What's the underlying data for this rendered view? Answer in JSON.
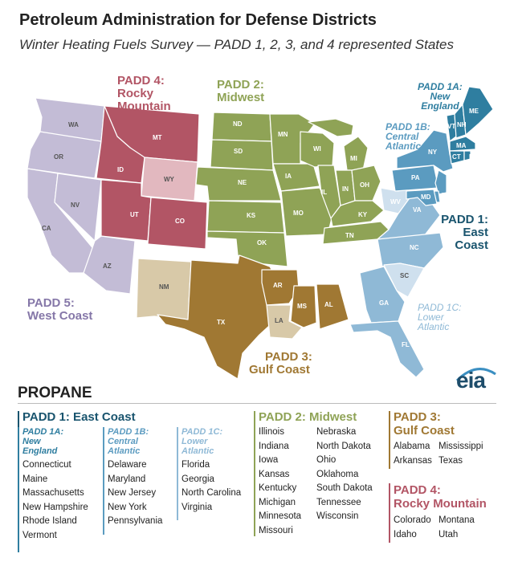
{
  "title": "Petroleum Administration for Defense Districts",
  "subtitle": "Winter Heating Fuels Survey — PADD 1, 2, 3, and 4 represented States",
  "colors": {
    "padd1": "#19546e",
    "padd1a": "#2f7ea0",
    "padd1b": "#5b9bc0",
    "padd1c": "#8fb9d6",
    "padd2": "#8fa356",
    "padd3": "#a07833",
    "padd4": "#b25565",
    "padd5": "#8577a8"
  },
  "map_labels": {
    "padd1": [
      "PADD 1:",
      "East",
      "Coast"
    ],
    "padd1a": [
      "PADD 1A:",
      "New",
      "England"
    ],
    "padd1b": [
      "PADD 1B:",
      "Central",
      "Atlantic"
    ],
    "padd1c": [
      "PADD 1C:",
      "Lower",
      "Atlantic"
    ],
    "padd2": [
      "PADD 2:",
      "Midwest"
    ],
    "padd3": [
      "PADD 3:",
      "Gulf Coast"
    ],
    "padd4": [
      "PADD 4:",
      "Rocky",
      "Mountain"
    ],
    "padd5": [
      "PADD 5:",
      "West Coast"
    ]
  },
  "states": {
    "WA": "WA",
    "OR": "OR",
    "CA": "CA",
    "NV": "NV",
    "AZ": "AZ",
    "MT": "MT",
    "ID": "ID",
    "WY": "WY",
    "UT": "UT",
    "CO": "CO",
    "ND": "ND",
    "SD": "SD",
    "NE": "NE",
    "KS": "KS",
    "OK": "OK",
    "MN": "MN",
    "IA": "IA",
    "MO": "MO",
    "WI": "WI",
    "IL": "IL",
    "MI": "MI",
    "IN": "IN",
    "OH": "OH",
    "KY": "KY",
    "TN": "TN",
    "NM": "NM",
    "TX": "TX",
    "AR": "AR",
    "LA": "LA",
    "MS": "MS",
    "AL": "AL",
    "ME": "ME",
    "VT": "VT",
    "NH": "NH",
    "MA": "MA",
    "CT": "CT",
    "RI": "RI",
    "NY": "NY",
    "PA": "PA",
    "NJ": "NJ",
    "DE": "DE",
    "MD": "MD",
    "WV": "WV",
    "VA": "VA",
    "NC": "NC",
    "SC": "SC",
    "GA": "GA",
    "FL": "FL"
  },
  "legend": {
    "heading": "PROPANE",
    "padd1": {
      "title": "PADD 1: East Coast",
      "1a": {
        "label": [
          "PADD 1A:",
          "New",
          "England"
        ],
        "states": [
          "Connecticut",
          "Maine",
          "Massachusetts",
          "New Hampshire",
          "Rhode Island",
          "Vermont"
        ]
      },
      "1b": {
        "label": [
          "PADD 1B:",
          "Central",
          "Atlantic"
        ],
        "states": [
          "Delaware",
          "Maryland",
          "New Jersey",
          "New York",
          "Pennsylvania"
        ]
      },
      "1c": {
        "label": [
          "PADD 1C:",
          "Lower",
          "Atlantic"
        ],
        "states": [
          "Florida",
          "Georgia",
          "North Carolina",
          "Virginia"
        ]
      }
    },
    "padd2": {
      "title": "PADD 2: Midwest",
      "col1": [
        "Illinois",
        "Indiana",
        "Iowa",
        "Kansas",
        "Kentucky",
        "Michigan",
        "Minnesota",
        "Missouri"
      ],
      "col2": [
        "Nebraska",
        "North Dakota",
        "Ohio",
        "Oklahoma",
        "South Dakota",
        "Tennessee",
        "Wisconsin"
      ]
    },
    "padd3": {
      "title": [
        "PADD 3:",
        "Gulf Coast"
      ],
      "col1": [
        "Alabama",
        "Arkansas"
      ],
      "col2": [
        "Mississippi",
        "Texas"
      ]
    },
    "padd4": {
      "title": [
        "PADD 4:",
        "Rocky Mountain"
      ],
      "col1": [
        "Colorado",
        "Idaho"
      ],
      "col2": [
        "Montana",
        "Utah"
      ]
    }
  },
  "logo": "eia"
}
